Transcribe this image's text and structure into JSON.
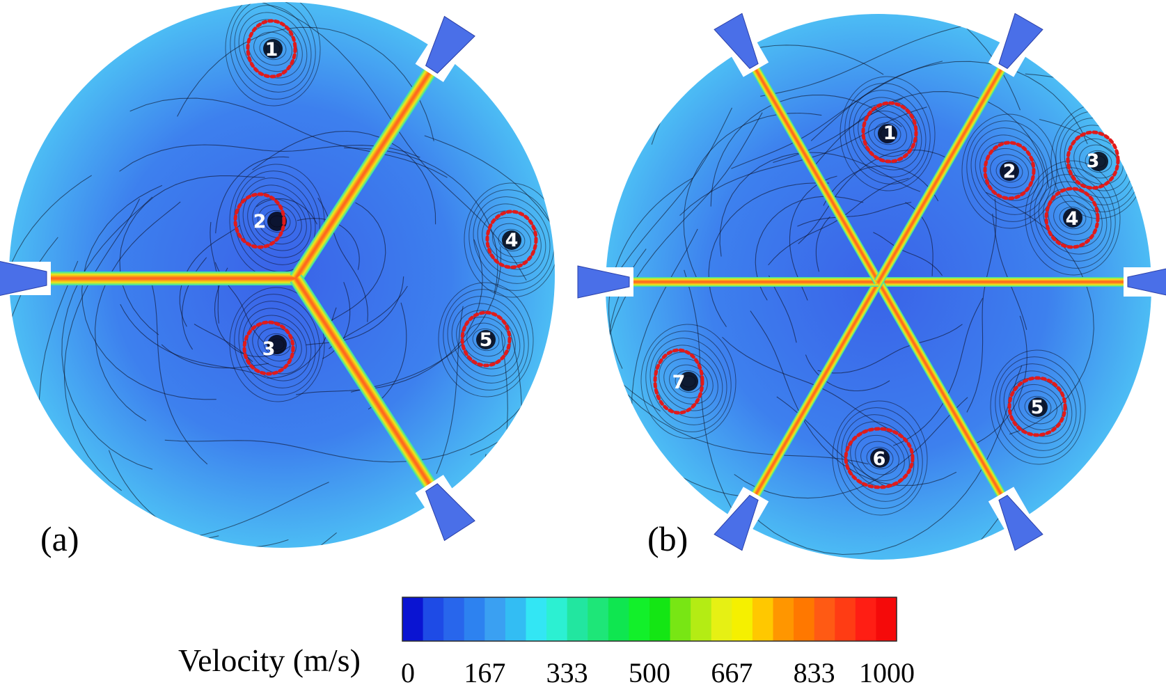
{
  "figure": {
    "panels": [
      {
        "label": "(a)",
        "jet_count": 3,
        "vortices": [
          "1",
          "2",
          "3",
          "4",
          "5"
        ]
      },
      {
        "label": "(b)",
        "jet_count": 6,
        "vortices": [
          "1",
          "2",
          "3",
          "4",
          "5",
          "6",
          "7"
        ]
      }
    ],
    "colorbar": {
      "title": "Velocity (m/s)",
      "unit": "m/s",
      "min": 0,
      "max": 1000,
      "tick_labels": [
        "0",
        "167",
        "333",
        "500",
        "667",
        "833",
        "1000"
      ],
      "colors": [
        "#0a14d2",
        "#1e4be6",
        "#2866ec",
        "#2d82f0",
        "#3aa0f2",
        "#33bdf3",
        "#33e6f4",
        "#2cf0d2",
        "#22e6a0",
        "#1ee678",
        "#0fe650",
        "#12f02a",
        "#14e614",
        "#78e614",
        "#b4ec14",
        "#e6f014",
        "#f5f000",
        "#ffc800",
        "#ff9600",
        "#ff7800",
        "#ff5a14",
        "#ff3c14",
        "#ff1e14",
        "#f50a0a"
      ]
    },
    "style": {
      "fluid_base": "#3c8ff0",
      "fluid_rim": "#4cbcf4",
      "vortex_marker": "#e01b1b",
      "streamline": "#0a0a18",
      "jet_hot": "#ff5a14"
    }
  }
}
